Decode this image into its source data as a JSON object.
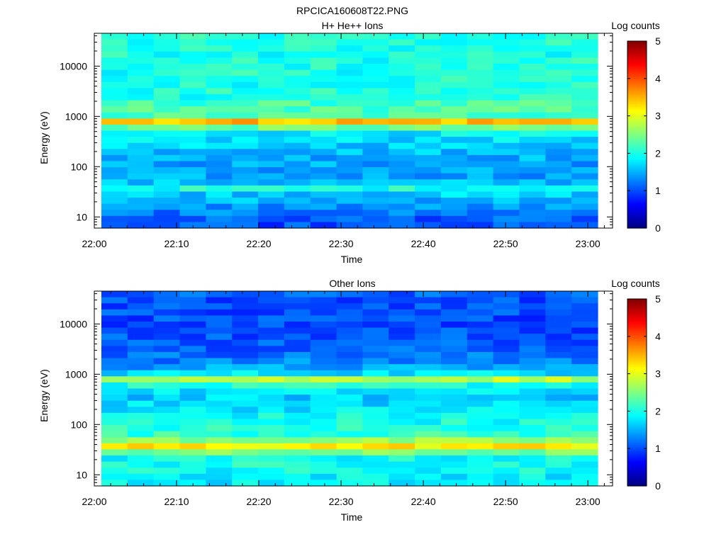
{
  "figure_title": "RPCICA160608T22.PNG",
  "chart_data": [
    {
      "type": "heatmap",
      "title": "H+ He++ Ions",
      "xlabel": "Time",
      "ylabel": "Energy (eV)",
      "x_ticks": [
        "22:00",
        "22:10",
        "22:20",
        "22:30",
        "22:40",
        "22:50",
        "23:00"
      ],
      "x_range": [
        "22:00",
        "23:03"
      ],
      "y_scale": "log",
      "y_ticks": [
        10,
        100,
        1000,
        10000
      ],
      "y_tick_labels": [
        "10",
        "100",
        "1000",
        "10000"
      ],
      "y_range": [
        6,
        45000
      ],
      "colorbar": {
        "label": "Log counts",
        "range": [
          0,
          5
        ],
        "ticks": [
          0,
          1,
          2,
          3,
          4,
          5
        ],
        "tick_labels": [
          "0",
          "1",
          "2",
          "3",
          "4",
          "5"
        ],
        "colormap": "jet"
      },
      "time_bins": 19,
      "energy_bins": 32,
      "bands": [
        {
          "energy_ev": 8,
          "log_counts": 1.0
        },
        {
          "energy_ev": 11,
          "log_counts": 1.2
        },
        {
          "energy_ev": 15,
          "log_counts": 1.3
        },
        {
          "energy_ev": 20,
          "log_counts": 1.5
        },
        {
          "energy_ev": 27,
          "log_counts": 1.6
        },
        {
          "energy_ev": 37,
          "log_counts": 2.0
        },
        {
          "energy_ev": 50,
          "log_counts": 1.5
        },
        {
          "energy_ev": 70,
          "log_counts": 1.4
        },
        {
          "energy_ev": 100,
          "log_counts": 1.4
        },
        {
          "energy_ev": 150,
          "log_counts": 1.5
        },
        {
          "energy_ev": 220,
          "log_counts": 1.6
        },
        {
          "energy_ev": 320,
          "log_counts": 1.7
        },
        {
          "energy_ev": 450,
          "log_counts": 1.8
        },
        {
          "energy_ev": 600,
          "log_counts": 2.4
        },
        {
          "energy_ev": 750,
          "log_counts": 3.8
        },
        {
          "energy_ev": 900,
          "log_counts": 2.6
        },
        {
          "energy_ev": 1100,
          "log_counts": 2.1
        },
        {
          "energy_ev": 1500,
          "log_counts": 2.3
        },
        {
          "energy_ev": 2500,
          "log_counts": 2.0
        },
        {
          "energy_ev": 5000,
          "log_counts": 2.0
        },
        {
          "energy_ev": 10000,
          "log_counts": 2.0
        },
        {
          "energy_ev": 20000,
          "log_counts": 2.0
        },
        {
          "energy_ev": 40000,
          "log_counts": 2.0
        }
      ]
    },
    {
      "type": "heatmap",
      "title": "Other Ions",
      "xlabel": "Time",
      "ylabel": "Energy (eV)",
      "x_ticks": [
        "22:00",
        "22:10",
        "22:20",
        "22:30",
        "22:40",
        "22:50",
        "23:00"
      ],
      "x_range": [
        "22:00",
        "23:03"
      ],
      "y_scale": "log",
      "y_ticks": [
        10,
        100,
        1000,
        10000
      ],
      "y_tick_labels": [
        "10",
        "100",
        "1000",
        "10000"
      ],
      "y_range": [
        6,
        45000
      ],
      "colorbar": {
        "label": "Log counts",
        "range": [
          0,
          5
        ],
        "ticks": [
          0,
          1,
          2,
          3,
          4,
          5
        ],
        "tick_labels": [
          "0",
          "1",
          "2",
          "3",
          "4",
          "5"
        ],
        "colormap": "jet"
      },
      "time_bins": 19,
      "energy_bins": 32,
      "bands": [
        {
          "energy_ev": 8,
          "log_counts": 1.8
        },
        {
          "energy_ev": 11,
          "log_counts": 1.9
        },
        {
          "energy_ev": 15,
          "log_counts": 2.0
        },
        {
          "energy_ev": 22,
          "log_counts": 1.9
        },
        {
          "energy_ev": 30,
          "log_counts": 2.6
        },
        {
          "energy_ev": 38,
          "log_counts": 3.3
        },
        {
          "energy_ev": 48,
          "log_counts": 2.6
        },
        {
          "energy_ev": 65,
          "log_counts": 2.1
        },
        {
          "energy_ev": 100,
          "log_counts": 2.0
        },
        {
          "energy_ev": 150,
          "log_counts": 1.9
        },
        {
          "energy_ev": 250,
          "log_counts": 1.7
        },
        {
          "energy_ev": 400,
          "log_counts": 1.6
        },
        {
          "energy_ev": 600,
          "log_counts": 2.0
        },
        {
          "energy_ev": 750,
          "log_counts": 3.1
        },
        {
          "energy_ev": 900,
          "log_counts": 2.0
        },
        {
          "energy_ev": 1200,
          "log_counts": 1.5
        },
        {
          "energy_ev": 2000,
          "log_counts": 1.2
        },
        {
          "energy_ev": 4000,
          "log_counts": 1.1
        },
        {
          "energy_ev": 8000,
          "log_counts": 1.0
        },
        {
          "energy_ev": 15000,
          "log_counts": 1.0
        },
        {
          "energy_ev": 30000,
          "log_counts": 1.0
        },
        {
          "energy_ev": 45000,
          "log_counts": 1.1
        }
      ]
    }
  ]
}
